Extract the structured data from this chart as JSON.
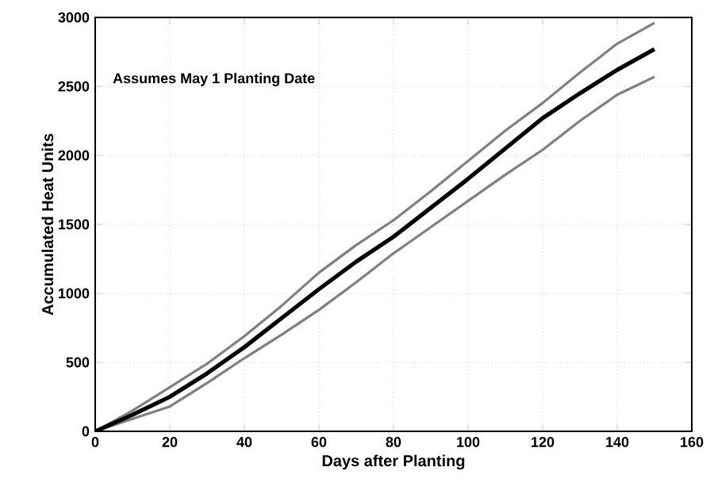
{
  "chart_data": {
    "type": "line",
    "xlabel": "Days after Planting",
    "ylabel": "Accumulated Heat Units",
    "annotations": [
      "Assumes May 1 Planting Date"
    ],
    "x": [
      0,
      10,
      20,
      30,
      40,
      50,
      60,
      70,
      80,
      90,
      100,
      110,
      120,
      130,
      140,
      150
    ],
    "series": [
      {
        "color": "#808080",
        "values": [
          0,
          150,
          320,
          490,
          690,
          910,
          1150,
          1350,
          1530,
          1740,
          1960,
          2180,
          2380,
          2600,
          2810,
          2960
        ]
      },
      {
        "color": "#808080",
        "values": [
          0,
          90,
          180,
          350,
          530,
          700,
          880,
          1080,
          1290,
          1480,
          1670,
          1860,
          2040,
          2250,
          2440,
          2570
        ]
      },
      {
        "color": "#000000",
        "values": [
          0,
          120,
          250,
          420,
          610,
          820,
          1030,
          1230,
          1410,
          1620,
          1830,
          2050,
          2270,
          2450,
          2620,
          2770
        ]
      }
    ],
    "xlim": [
      0,
      160
    ],
    "ylim": [
      0,
      3000
    ],
    "xticks": [
      0,
      20,
      40,
      60,
      80,
      100,
      120,
      140,
      160
    ],
    "yticks": [
      0,
      500,
      1000,
      1500,
      2000,
      2500,
      3000
    ],
    "grid": true,
    "marker": "none",
    "line_style": "solid"
  }
}
